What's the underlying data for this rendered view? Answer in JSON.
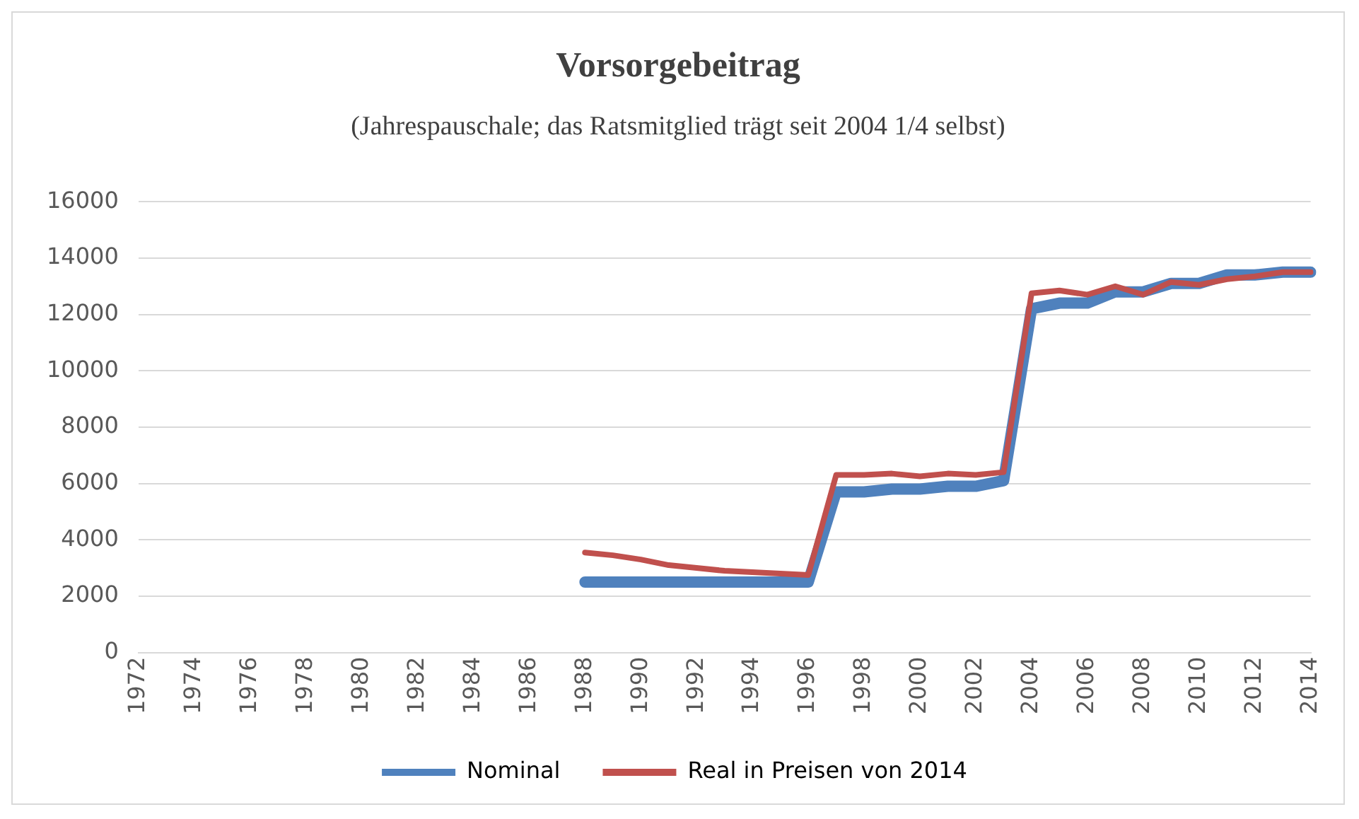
{
  "chart_data": {
    "type": "line",
    "title": "Vorsorgebeitrag",
    "subtitle": "(Jahrespauschale; das Ratsmitglied trägt seit 2004 1/4 selbst)",
    "categories": [
      "1972",
      null,
      "1974",
      null,
      "1976",
      null,
      "1978",
      null,
      "1980",
      null,
      "1982",
      null,
      "1984",
      null,
      "1986",
      null,
      "1988",
      null,
      "1990",
      null,
      "1992",
      null,
      "1994",
      null,
      "1996",
      null,
      "1998",
      null,
      "2000",
      null,
      "2002",
      null,
      "2004",
      null,
      "2006",
      null,
      "2008",
      null,
      "2010",
      null,
      "2012",
      null,
      "2014"
    ],
    "series": [
      {
        "name": "Nominal",
        "color": "#4f81bd",
        "values": [
          null,
          null,
          null,
          null,
          null,
          null,
          null,
          null,
          null,
          null,
          null,
          null,
          null,
          null,
          null,
          null,
          2500,
          2500,
          2500,
          2500,
          2500,
          2500,
          2500,
          2500,
          2500,
          5700,
          5700,
          5800,
          5800,
          5900,
          5900,
          6100,
          12200,
          12400,
          12400,
          12800,
          12800,
          13100,
          13100,
          13400,
          13400,
          13500,
          13500
        ]
      },
      {
        "name": "Real in Preisen von 2014",
        "color": "#c0504d",
        "values": [
          null,
          null,
          null,
          null,
          null,
          null,
          null,
          null,
          null,
          null,
          null,
          null,
          null,
          null,
          null,
          null,
          3550,
          3450,
          3300,
          3100,
          3000,
          2900,
          2850,
          2800,
          2750,
          6300,
          6300,
          6350,
          6250,
          6350,
          6300,
          6400,
          12750,
          12850,
          12700,
          13000,
          12700,
          13150,
          13050,
          13250,
          13350,
          13500,
          13500
        ]
      }
    ],
    "ylim": [
      0,
      16000
    ],
    "yticks": [
      0,
      2000,
      4000,
      6000,
      8000,
      10000,
      12000,
      14000,
      16000
    ],
    "grid": "y",
    "legend": "bottom",
    "marker": "none",
    "line_style": "solid"
  }
}
